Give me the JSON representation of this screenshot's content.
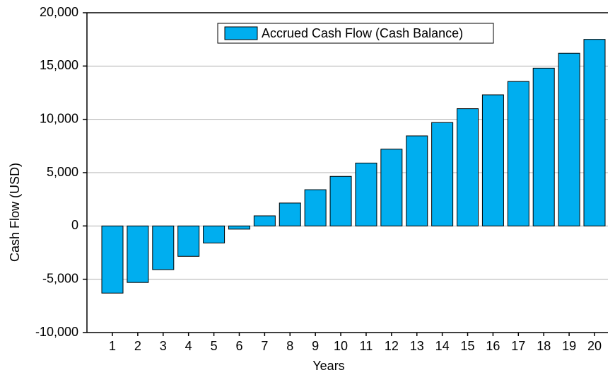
{
  "chart_data": {
    "type": "bar",
    "x_label": "Years",
    "y_label": "Cash Flow (USD)",
    "categories": [
      "1",
      "2",
      "3",
      "4",
      "5",
      "6",
      "7",
      "8",
      "9",
      "10",
      "11",
      "12",
      "13",
      "14",
      "15",
      "16",
      "17",
      "18",
      "19",
      "20"
    ],
    "series": [
      {
        "name": "Accrued Cash Flow (Cash Balance)",
        "color": "#00aeef",
        "values": [
          -6300,
          -5300,
          -4100,
          -2850,
          -1600,
          -300,
          950,
          2150,
          3400,
          4650,
          5900,
          7200,
          8450,
          9700,
          11000,
          12300,
          13550,
          14800,
          16200,
          17500
        ]
      }
    ],
    "ylim": [
      -10000,
      20000
    ],
    "yticks": [
      {
        "value": -10000,
        "label": "-10,000"
      },
      {
        "value": -5000,
        "label": "-5,000"
      },
      0,
      {
        "value": 5000,
        "label": "5,000"
      },
      {
        "value": 10000,
        "label": "10,000"
      },
      {
        "value": 15000,
        "label": "15,000"
      },
      {
        "value": 20000,
        "label": "20,000"
      }
    ],
    "grid": true,
    "legend": "top"
  }
}
